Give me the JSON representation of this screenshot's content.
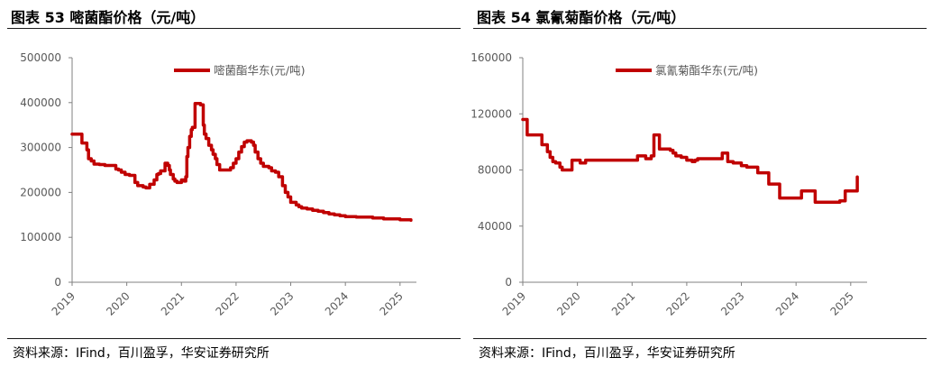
{
  "figures": [
    {
      "title": "图表 53 嘧菌酯价格（元/吨）",
      "source": "资料来源：IFind，百川盈孚，华安证券研究所"
    },
    {
      "title": "图表 54 氯氰菊酯价格（元/吨）",
      "source": "资料来源：IFind，百川盈孚，华安证券研究所"
    }
  ],
  "chart_data": [
    {
      "type": "line",
      "title": "",
      "xlabel": "",
      "ylabel": "",
      "x_ticks": [
        "2019",
        "2020",
        "2021",
        "2022",
        "2023",
        "2024",
        "2025"
      ],
      "y_ticks": [
        "0",
        "100000",
        "200000",
        "300000",
        "400000",
        "500000"
      ],
      "ylim": [
        0,
        500000
      ],
      "xlim": [
        2019.0,
        2025.3
      ],
      "grid": false,
      "legend_position": "top",
      "color": "#C00000",
      "series": [
        {
          "name": "嘧菌酯华东(元/吨)",
          "x": [
            2019.0,
            2019.15,
            2019.18,
            2019.24,
            2019.27,
            2019.3,
            2019.35,
            2019.4,
            2019.5,
            2019.6,
            2019.7,
            2019.75,
            2019.8,
            2019.85,
            2019.9,
            2019.97,
            2020.05,
            2020.15,
            2020.2,
            2020.3,
            2020.35,
            2020.42,
            2020.5,
            2020.55,
            2020.58,
            2020.62,
            2020.7,
            2020.75,
            2020.78,
            2020.8,
            2020.85,
            2020.88,
            2020.92,
            2020.97,
            2021.0,
            2021.05,
            2021.08,
            2021.1,
            2021.12,
            2021.15,
            2021.18,
            2021.2,
            2021.25,
            2021.3,
            2021.35,
            2021.4,
            2021.42,
            2021.45,
            2021.5,
            2021.55,
            2021.58,
            2021.62,
            2021.65,
            2021.7,
            2021.75,
            2021.85,
            2021.9,
            2021.95,
            2022.0,
            2022.05,
            2022.1,
            2022.15,
            2022.2,
            2022.28,
            2022.32,
            2022.35,
            2022.4,
            2022.45,
            2022.5,
            2022.6,
            2022.65,
            2022.72,
            2022.78,
            2022.85,
            2022.9,
            2022.95,
            2023.0,
            2023.1,
            2023.15,
            2023.2,
            2023.3,
            2023.4,
            2023.5,
            2023.6,
            2023.7,
            2023.8,
            2023.9,
            2024.0,
            2024.2,
            2024.5,
            2024.7,
            2025.0,
            2025.2
          ],
          "y": [
            330000,
            330000,
            310000,
            310000,
            295000,
            275000,
            270000,
            263000,
            262000,
            260000,
            260000,
            260000,
            252000,
            250000,
            245000,
            240000,
            238000,
            222000,
            215000,
            212000,
            210000,
            218000,
            228000,
            240000,
            242000,
            248000,
            265000,
            260000,
            250000,
            240000,
            230000,
            225000,
            222000,
            222000,
            228000,
            225000,
            235000,
            280000,
            300000,
            325000,
            340000,
            345000,
            398000,
            398000,
            395000,
            350000,
            330000,
            320000,
            305000,
            295000,
            285000,
            275000,
            262000,
            250000,
            250000,
            250000,
            255000,
            265000,
            275000,
            290000,
            302000,
            312000,
            315000,
            312000,
            305000,
            290000,
            275000,
            265000,
            258000,
            255000,
            248000,
            245000,
            235000,
            215000,
            200000,
            190000,
            178000,
            172000,
            168000,
            165000,
            163000,
            160000,
            158000,
            155000,
            152000,
            150000,
            148000,
            146000,
            145000,
            143000,
            141000,
            139000,
            138000
          ]
        }
      ]
    },
    {
      "type": "line",
      "title": "",
      "xlabel": "",
      "ylabel": "",
      "x_ticks": [
        "2019",
        "2020",
        "2021",
        "2022",
        "2023",
        "2024",
        "2025"
      ],
      "y_ticks": [
        "0",
        "40000",
        "80000",
        "120000",
        "160000"
      ],
      "ylim": [
        0,
        160000
      ],
      "xlim": [
        2019.0,
        2025.3
      ],
      "grid": false,
      "legend_position": "top",
      "color": "#C00000",
      "series": [
        {
          "name": "氯氰菊酯华东(元/吨)",
          "x": [
            2019.0,
            2019.05,
            2019.08,
            2019.3,
            2019.35,
            2019.45,
            2019.5,
            2019.55,
            2019.6,
            2019.68,
            2019.72,
            2019.8,
            2019.9,
            2020.0,
            2020.05,
            2020.1,
            2020.15,
            2020.25,
            2020.3,
            2020.5,
            2020.7,
            2020.8,
            2021.0,
            2021.1,
            2021.15,
            2021.2,
            2021.25,
            2021.28,
            2021.3,
            2021.35,
            2021.4,
            2021.45,
            2021.5,
            2021.6,
            2021.7,
            2021.75,
            2021.8,
            2021.85,
            2021.9,
            2022.0,
            2022.1,
            2022.15,
            2022.2,
            2022.25,
            2022.3,
            2022.4,
            2022.5,
            2022.6,
            2022.65,
            2022.7,
            2022.75,
            2022.8,
            2022.85,
            2022.9,
            2022.95,
            2023.0,
            2023.1,
            2023.2,
            2023.3,
            2023.4,
            2023.5,
            2023.6,
            2023.7,
            2023.8,
            2023.9,
            2024.0,
            2024.1,
            2024.2,
            2024.3,
            2024.35,
            2024.4,
            2024.45,
            2024.5,
            2024.6,
            2024.7,
            2024.8,
            2024.9,
            2025.0,
            2025.05,
            2025.08,
            2025.12
          ],
          "y": [
            116000,
            116000,
            105000,
            105000,
            98000,
            93000,
            89000,
            86000,
            85000,
            82000,
            80000,
            80000,
            87000,
            87000,
            85000,
            85000,
            87000,
            87000,
            87000,
            87000,
            87000,
            87000,
            87000,
            90000,
            90000,
            90000,
            88000,
            88000,
            88000,
            90000,
            105000,
            105000,
            95000,
            95000,
            94000,
            92000,
            90000,
            90000,
            89000,
            87000,
            86000,
            87000,
            88000,
            88000,
            88000,
            88000,
            88000,
            88000,
            92000,
            92000,
            86000,
            86000,
            85000,
            85000,
            85000,
            83000,
            82000,
            82000,
            78000,
            78000,
            70000,
            70000,
            60000,
            60000,
            60000,
            60000,
            65000,
            65000,
            65000,
            57000,
            57000,
            57000,
            57000,
            57000,
            57000,
            58000,
            65000,
            65000,
            65000,
            65000,
            75000
          ]
        }
      ]
    }
  ]
}
